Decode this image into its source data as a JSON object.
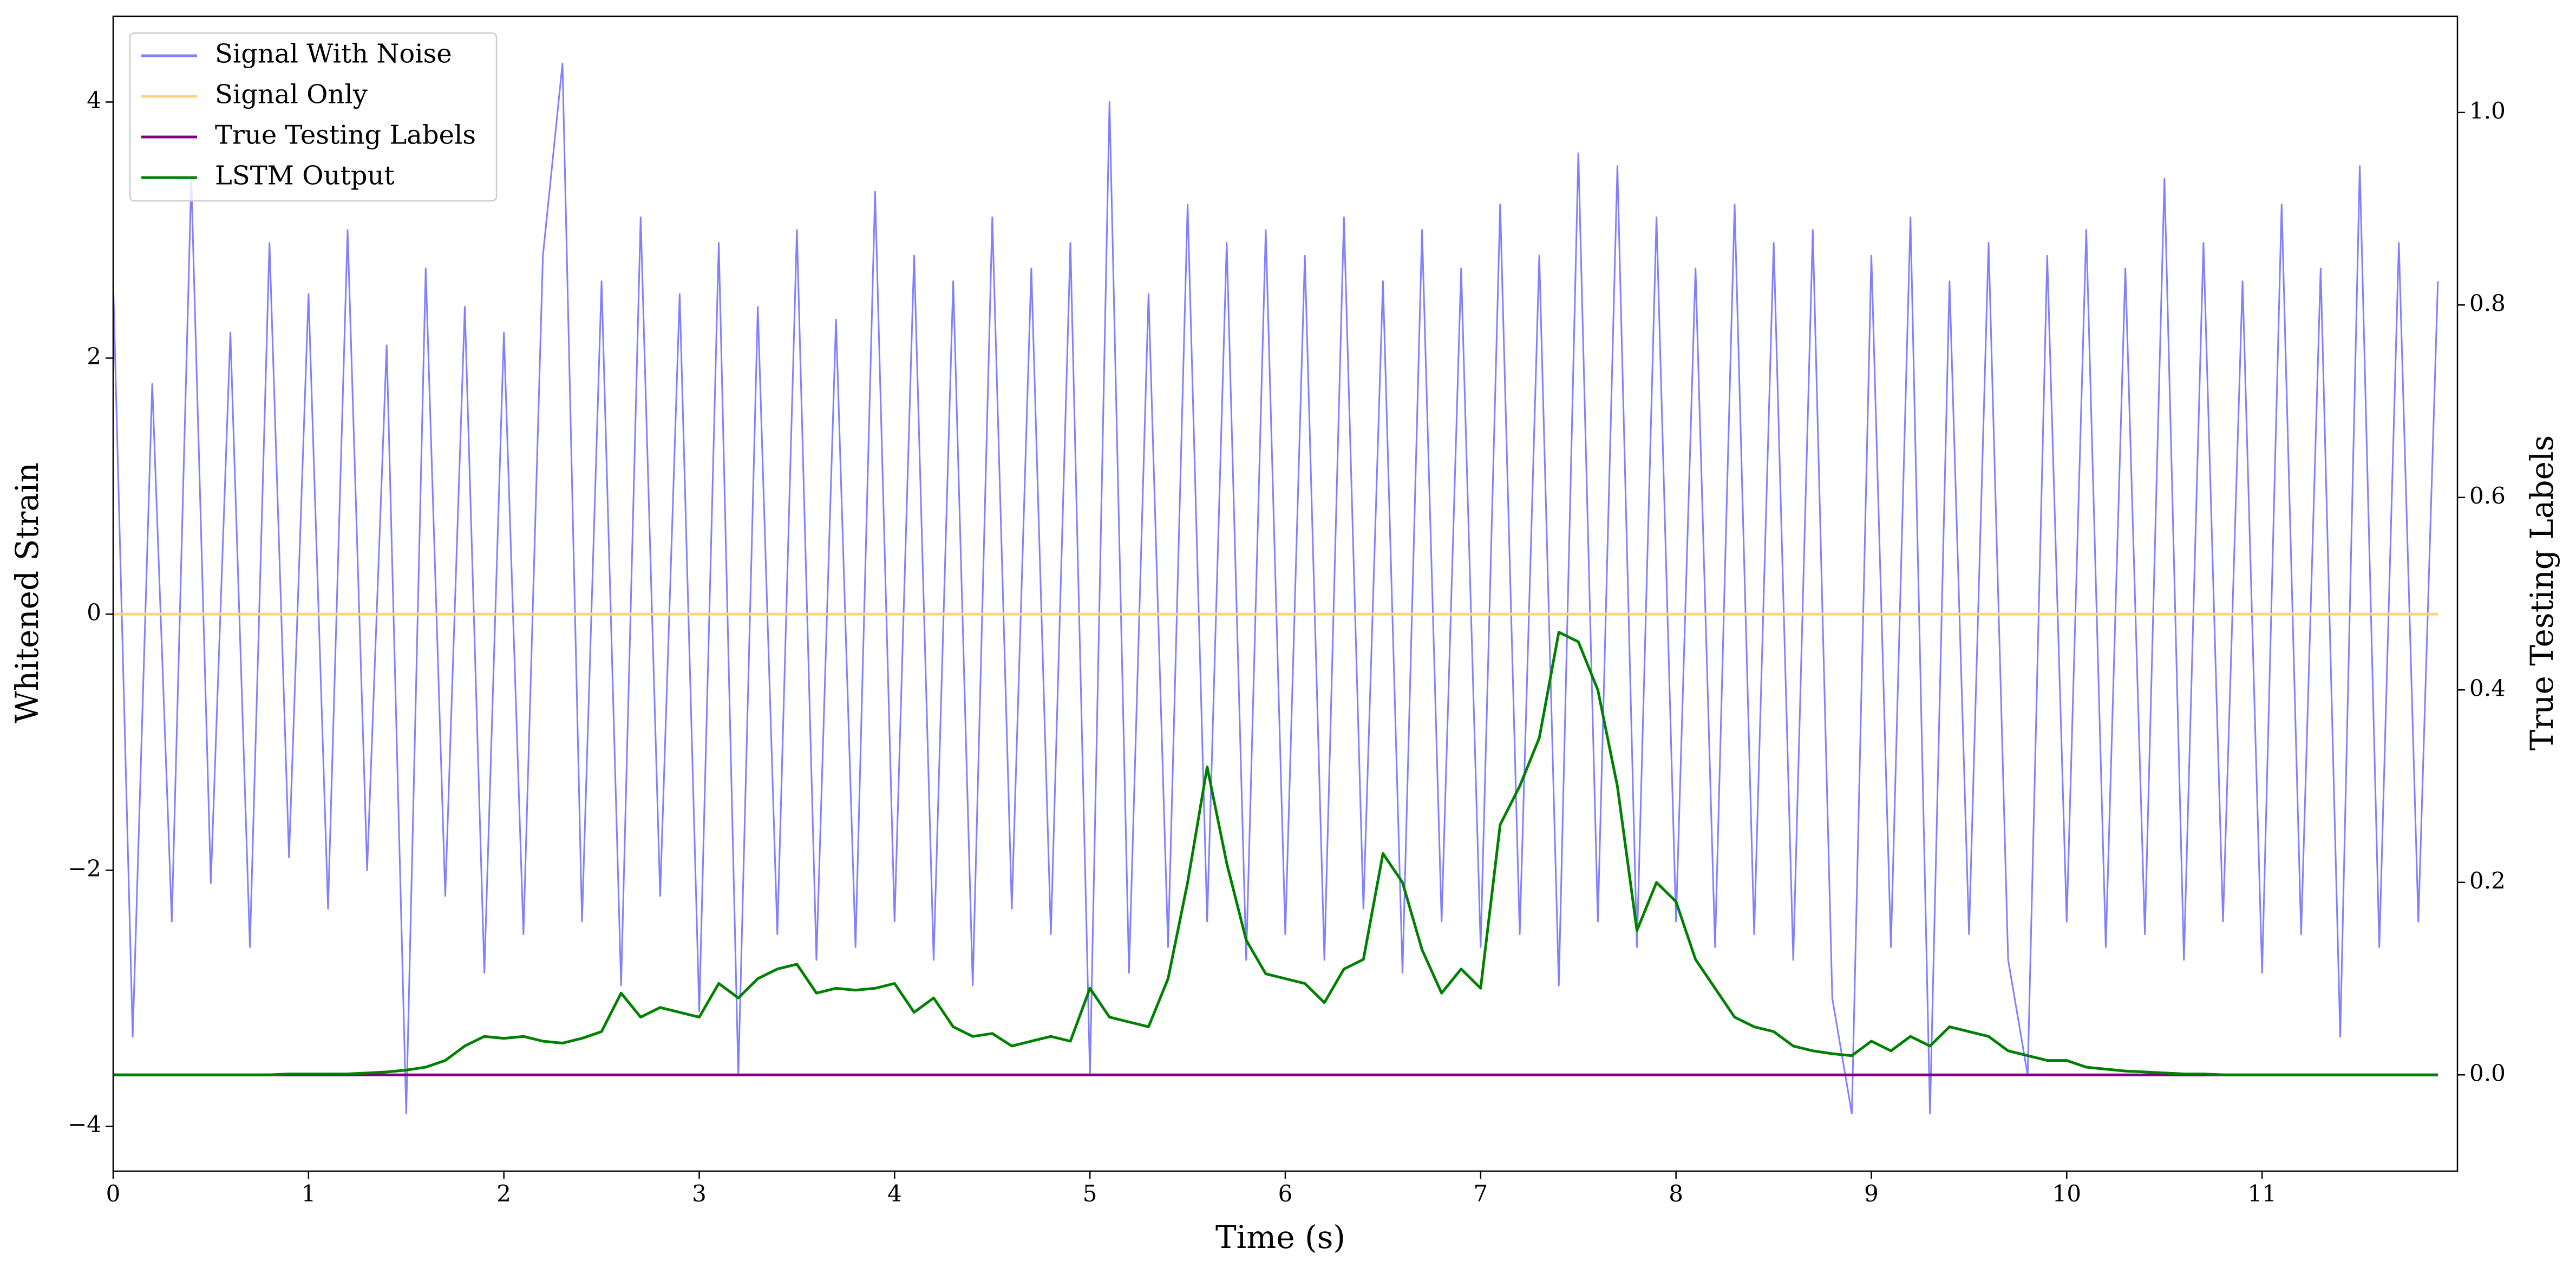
{
  "chart_data": {
    "type": "line",
    "xlabel": "Time (s)",
    "ylabel": "Whitened Strain",
    "y2label": "True Testing Labels",
    "x": [
      0,
      0.1,
      0.2,
      0.3,
      0.4,
      0.5,
      0.6,
      0.7,
      0.8,
      0.9,
      1,
      1.1,
      1.2,
      1.3,
      1.4,
      1.5,
      1.6,
      1.7,
      1.8,
      1.9,
      2,
      2.1,
      2.2,
      2.3,
      2.4,
      2.5,
      2.6,
      2.7,
      2.8,
      2.9,
      3,
      3.1,
      3.2,
      3.3,
      3.4,
      3.5,
      3.6,
      3.7,
      3.8,
      3.9,
      4,
      4.1,
      4.2,
      4.3,
      4.4,
      4.5,
      4.6,
      4.7,
      4.8,
      4.9,
      5,
      5.1,
      5.2,
      5.3,
      5.4,
      5.5,
      5.6,
      5.7,
      5.8,
      5.9,
      6,
      6.1,
      6.2,
      6.3,
      6.4,
      6.5,
      6.6,
      6.7,
      6.8,
      6.9,
      7,
      7.1,
      7.2,
      7.3,
      7.4,
      7.5,
      7.6,
      7.7,
      7.8,
      7.9,
      8,
      8.1,
      8.2,
      8.3,
      8.4,
      8.5,
      8.6,
      8.7,
      8.8,
      8.9,
      9,
      9.1,
      9.2,
      9.3,
      9.4,
      9.5,
      9.6,
      9.7,
      9.8,
      9.9,
      10,
      10.1,
      10.2,
      10.3,
      10.4,
      10.5,
      10.6,
      10.7,
      10.8,
      10.9,
      11,
      11.1,
      11.2,
      11.3,
      11.4,
      11.5,
      11.6,
      11.7,
      11.8,
      11.9
    ],
    "series": [
      {
        "name": "Signal With Noise",
        "color": "#8080ff",
        "axis": "y",
        "values": [
          2.6,
          -3.3,
          1.8,
          -2.4,
          3.4,
          -2.1,
          2.2,
          -2.6,
          2.9,
          -1.9,
          2.5,
          -2.3,
          3.0,
          -2.0,
          2.1,
          -3.9,
          2.7,
          -2.2,
          2.4,
          -2.8,
          2.2,
          -2.5,
          2.8,
          4.3,
          -2.4,
          2.6,
          -2.9,
          3.1,
          -2.2,
          2.5,
          -3.1,
          2.9,
          -3.6,
          2.4,
          -2.5,
          3.0,
          -2.7,
          2.3,
          -2.6,
          3.3,
          -2.4,
          2.8,
          -2.7,
          2.6,
          -2.9,
          3.1,
          -2.3,
          2.7,
          -2.5,
          2.9,
          -3.6,
          4.0,
          -2.8,
          2.5,
          -2.6,
          3.2,
          -2.4,
          2.9,
          -2.7,
          3.0,
          -2.5,
          2.8,
          -2.7,
          3.1,
          -2.3,
          2.6,
          -2.8,
          3.0,
          -2.4,
          2.7,
          -2.6,
          3.2,
          -2.5,
          2.8,
          -2.9,
          3.6,
          -2.4,
          3.5,
          -2.6,
          3.1,
          -2.4,
          2.7,
          -2.6,
          3.2,
          -2.5,
          2.9,
          -2.7,
          3.0,
          -3.0,
          -3.9,
          2.8,
          -2.6,
          3.1,
          -3.9,
          2.6,
          -2.5,
          2.9,
          -2.7,
          -3.6,
          2.8,
          -2.4,
          3.0,
          -2.6,
          2.7,
          -2.5,
          3.4,
          -2.7,
          2.9,
          -2.4,
          2.6,
          -2.8,
          3.2,
          -2.5,
          2.7,
          -3.3,
          3.5,
          -2.6,
          2.9,
          -2.4,
          2.6
        ]
      },
      {
        "name": "Signal Only",
        "color": "#ffd280",
        "axis": "y",
        "x": [
          0,
          11.9
        ],
        "values": [
          0,
          0
        ]
      },
      {
        "name": "True Testing Labels",
        "color": "#800080",
        "axis": "y2",
        "x": [
          0,
          11.9
        ],
        "values": [
          0,
          0
        ]
      },
      {
        "name": "LSTM Output",
        "color": "#008000",
        "axis": "y2",
        "values": [
          0,
          0,
          0,
          0,
          0,
          0,
          0,
          0,
          0,
          0.001,
          0.001,
          0.001,
          0.001,
          0.002,
          0.003,
          0.005,
          0.008,
          0.015,
          0.03,
          0.04,
          0.038,
          0.04,
          0.035,
          0.033,
          0.038,
          0.045,
          0.085,
          0.06,
          0.07,
          0.065,
          0.06,
          0.095,
          0.08,
          0.1,
          0.11,
          0.115,
          0.085,
          0.09,
          0.088,
          0.09,
          0.095,
          0.065,
          0.08,
          0.05,
          0.04,
          0.043,
          0.03,
          0.035,
          0.04,
          0.035,
          0.09,
          0.06,
          0.055,
          0.05,
          0.1,
          0.2,
          0.32,
          0.22,
          0.14,
          0.105,
          0.1,
          0.095,
          0.075,
          0.11,
          0.12,
          0.23,
          0.2,
          0.13,
          0.085,
          0.11,
          0.09,
          0.26,
          0.3,
          0.35,
          0.46,
          0.45,
          0.4,
          0.3,
          0.15,
          0.2,
          0.18,
          0.12,
          0.09,
          0.06,
          0.05,
          0.045,
          0.03,
          0.025,
          0.022,
          0.02,
          0.035,
          0.025,
          0.04,
          0.03,
          0.05,
          0.045,
          0.04,
          0.025,
          0.02,
          0.015,
          0.015,
          0.008,
          0.006,
          0.004,
          0.003,
          0.002,
          0.001,
          0.001,
          0,
          0,
          0,
          0,
          0,
          0,
          0,
          0,
          0,
          0,
          0,
          0
        ]
      }
    ],
    "xlim": [
      0,
      12
    ],
    "xticks": [
      0,
      1,
      2,
      3,
      4,
      5,
      6,
      7,
      8,
      9,
      10,
      11
    ],
    "ylim": [
      -4.35,
      4.67
    ],
    "yticks": [
      {
        "value": -4,
        "label": "−4"
      },
      {
        "value": -2,
        "label": "−2"
      },
      0,
      2,
      4
    ],
    "y2lim": [
      -0.1,
      1.1
    ],
    "y2ticks": [
      {
        "value": 0,
        "label": "0.0"
      },
      {
        "value": 0.2,
        "label": "0.2"
      },
      {
        "value": 0.4,
        "label": "0.4"
      },
      {
        "value": 0.6,
        "label": "0.6"
      },
      {
        "value": 0.8,
        "label": "0.8"
      },
      {
        "value": 1,
        "label": "1.0"
      }
    ],
    "legend": "upper left"
  }
}
